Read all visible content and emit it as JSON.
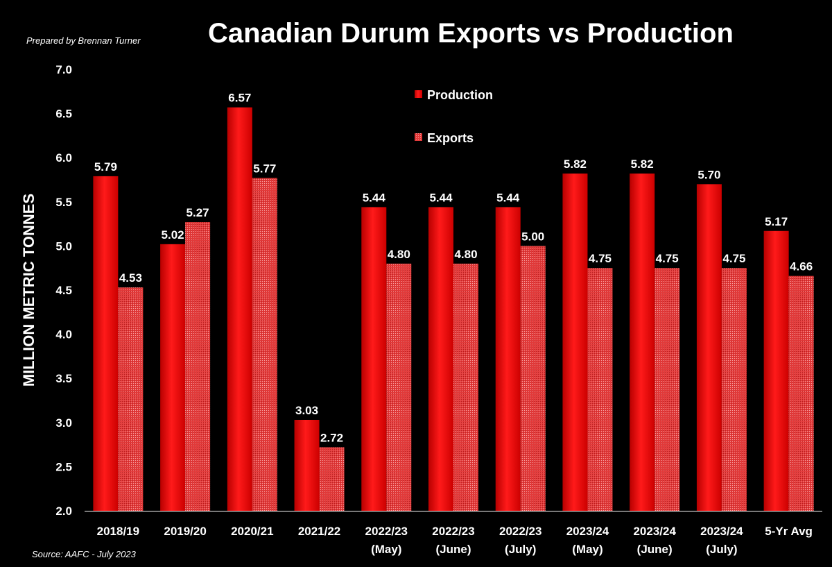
{
  "header": {
    "prepared_by": "Prepared by Brennan Turner",
    "title": "Canadian Durum Exports vs Production"
  },
  "footer": {
    "source": "Source: AAFC - July 2023"
  },
  "colors": {
    "background": "#000000",
    "production": "#e60000",
    "exports": "#e34a4a",
    "text": "#ffffff"
  },
  "chart_data": {
    "type": "bar",
    "title": "Canadian Durum Exports vs Production",
    "ylabel": "MILLION METRIC TONNES",
    "xlabel": "",
    "ylim": [
      2.0,
      7.0
    ],
    "ytick_step": 0.5,
    "yticks": [
      "2.0",
      "2.5",
      "3.0",
      "3.5",
      "4.0",
      "4.5",
      "5.0",
      "5.5",
      "6.0",
      "6.5",
      "7.0"
    ],
    "grid": false,
    "legend_position": "top-center",
    "categories": [
      [
        "2018/19"
      ],
      [
        "2019/20"
      ],
      [
        "2020/21"
      ],
      [
        "2021/22"
      ],
      [
        "2022/23",
        "(May)"
      ],
      [
        "2022/23",
        "(June)"
      ],
      [
        "2022/23",
        "(July)"
      ],
      [
        "2023/24",
        "(May)"
      ],
      [
        "2023/24",
        "(June)"
      ],
      [
        "2023/24",
        "(July)"
      ],
      [
        "5-Yr Avg"
      ]
    ],
    "series": [
      {
        "name": "Production",
        "values": [
          5.79,
          5.02,
          6.57,
          3.03,
          5.44,
          5.44,
          5.44,
          5.82,
          5.82,
          5.7,
          5.17
        ],
        "labels": [
          "5.79",
          "5.02",
          "6.57",
          "3.03",
          "5.44",
          "5.44",
          "5.44",
          "5.82",
          "5.82",
          "5.70",
          "5.17"
        ]
      },
      {
        "name": "Exports",
        "values": [
          4.53,
          5.27,
          5.77,
          2.72,
          4.8,
          4.8,
          5.0,
          4.75,
          4.75,
          4.75,
          4.66
        ],
        "labels": [
          "4.53",
          "5.27",
          "5.77",
          "2.72",
          "4.80",
          "4.80",
          "5.00",
          "4.75",
          "4.75",
          "4.75",
          "4.66"
        ]
      }
    ]
  }
}
